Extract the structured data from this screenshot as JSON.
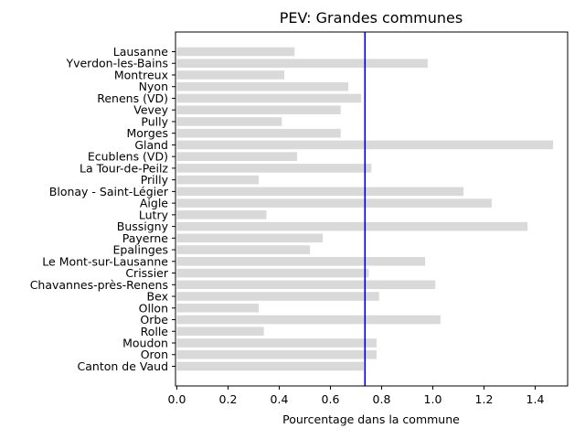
{
  "chart_data": {
    "type": "bar",
    "orientation": "horizontal",
    "title": "PEV: Grandes communes",
    "xlabel": "Pourcentage dans la commune",
    "ylabel": "",
    "xlim": [
      0,
      1.54
    ],
    "xticks": [
      "0.0",
      "0.2",
      "0.4",
      "0.6",
      "0.8",
      "1.0",
      "1.2",
      "1.4"
    ],
    "categories": [
      "Lausanne",
      "Yverdon-les-Bains",
      "Montreux",
      "Nyon",
      "Renens (VD)",
      "Vevey",
      "Pully",
      "Morges",
      "Gland",
      "Ecublens (VD)",
      "La Tour-de-Peilz",
      "Prilly",
      "Blonay - Saint-Légier",
      "Aigle",
      "Lutry",
      "Bussigny",
      "Payerne",
      "Epalinges",
      "Le Mont-sur-Lausanne",
      "Crissier",
      "Chavannes-près-Renens",
      "Bex",
      "Ollon",
      "Orbe",
      "Rolle",
      "Moudon",
      "Oron",
      "Canton de Vaud"
    ],
    "values": [
      0.46,
      0.98,
      0.42,
      0.67,
      0.72,
      0.64,
      0.41,
      0.64,
      1.47,
      0.47,
      0.76,
      0.32,
      1.12,
      1.23,
      0.35,
      1.37,
      0.57,
      0.52,
      0.97,
      0.75,
      1.01,
      0.79,
      0.32,
      1.03,
      0.34,
      0.78,
      0.78,
      0.73
    ],
    "reference_line": {
      "value": 0.735,
      "color": "#0000cc"
    },
    "bar_color": "#d9d9d9",
    "grid": false
  }
}
